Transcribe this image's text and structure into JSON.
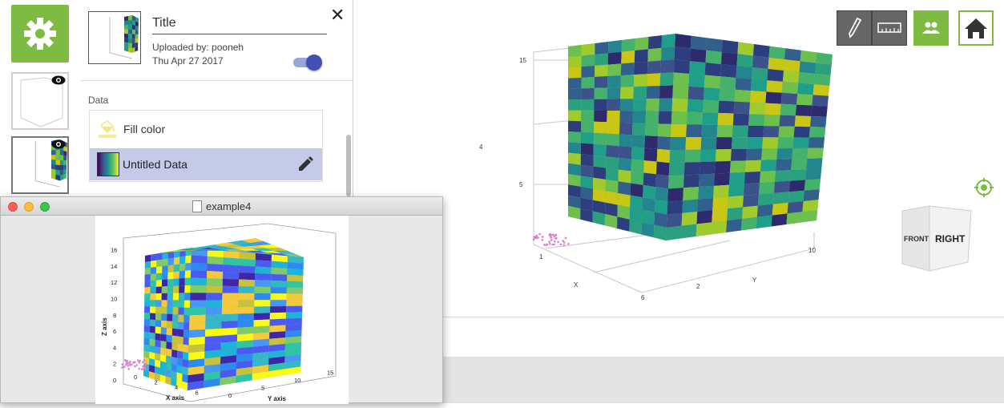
{
  "panel": {
    "title": "Title",
    "uploaded_by": "Uploaded by: pooneh",
    "date": "Thu Apr 27 2017",
    "data_section_label": "Data",
    "fill_color_label": "Fill color",
    "data_item_label": "Untitled Data",
    "close_glyph": "✕"
  },
  "viewport": {
    "tick_labels": {
      "z_top": "15",
      "z_mid": "4",
      "z_low": "5",
      "x_axis_label": "X",
      "y_axis_label": "Y",
      "x_tick_1": "1",
      "x_tick_2": "2",
      "x_tick_6": "6",
      "y_tick_10": "10"
    },
    "view_cube": {
      "front": "FRONT",
      "right": "RIGHT"
    }
  },
  "toolbar": {
    "icons": [
      "draw-icon",
      "ruler-icon",
      "users-icon",
      "home-icon"
    ]
  },
  "mac_window": {
    "title": "example4",
    "plot": {
      "z_axis_label": "Z axis",
      "x_axis_label": "X axis",
      "y_axis_label": "Y axis",
      "z_ticks": [
        "0",
        "2",
        "4",
        "6",
        "8",
        "10",
        "12",
        "14",
        "16"
      ],
      "x_ticks": [
        "0",
        "2",
        "4",
        "6"
      ],
      "y_ticks": [
        "0",
        "5",
        "10",
        "15"
      ]
    }
  },
  "colors": {
    "accent_green": "#7dbb42",
    "selection": "#c5cae9",
    "toggle": "#3f51b5"
  }
}
